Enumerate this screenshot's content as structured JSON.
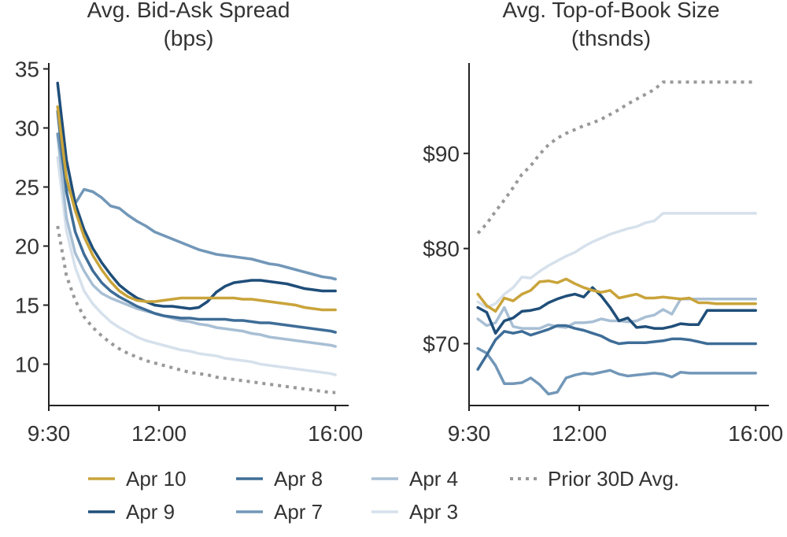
{
  "colors": {
    "Apr 10": "#c9a43a",
    "Apr 9": "#1f4e79",
    "Apr 8": "#3e6d97",
    "Apr 7": "#7297b8",
    "Apr 4": "#a8bfd4",
    "Apr 3": "#d6e1ec",
    "Prior 30D Avg.": "#999999",
    "axis": "#222222",
    "text": "#333333"
  },
  "legend": [
    "Apr 10",
    "Apr 9",
    "Apr 8",
    "Apr 7",
    "Apr 4",
    "Apr 3",
    "Prior 30D Avg."
  ],
  "chart_data": [
    {
      "type": "line",
      "title": "Avg. Bid-Ask Spread\n(bps)",
      "title_line1": "Avg. Bid-Ask Spread",
      "title_line2": "(bps)",
      "x_ticks": [
        "9:30",
        "12:00",
        "16:00"
      ],
      "x_tick_values": [
        9.5,
        12,
        16
      ],
      "xlim": [
        9.5,
        16.3
      ],
      "ylim": [
        6.5,
        35.5
      ],
      "y_ticks": [
        10,
        15,
        20,
        25,
        30,
        35
      ],
      "y_tick_labels": [
        "10",
        "15",
        "20",
        "25",
        "30",
        "35"
      ],
      "series": [
        {
          "name": "Apr 10",
          "x": [
            9.7,
            9.9,
            10.1,
            10.3,
            10.5,
            10.7,
            10.9,
            11.1,
            11.3,
            11.5,
            11.7,
            11.9,
            12.1,
            12.3,
            12.5,
            12.7,
            12.9,
            13.1,
            13.3,
            13.5,
            13.7,
            13.9,
            14.1,
            14.3,
            14.5,
            14.7,
            14.9,
            15.1,
            15.3,
            15.5,
            15.7,
            15.9,
            16.0
          ],
          "y": [
            31.8,
            25.8,
            23,
            20.8,
            19.2,
            18,
            17,
            16.2,
            15.7,
            15.4,
            15.3,
            15.3,
            15.4,
            15.5,
            15.6,
            15.6,
            15.6,
            15.6,
            15.6,
            15.6,
            15.6,
            15.5,
            15.5,
            15.4,
            15.3,
            15.2,
            15.1,
            15.0,
            14.8,
            14.7,
            14.6,
            14.6,
            14.6
          ]
        },
        {
          "name": "Apr 9",
          "x": [
            9.7,
            9.9,
            10.1,
            10.3,
            10.5,
            10.7,
            10.9,
            11.1,
            11.3,
            11.5,
            11.7,
            11.9,
            12.1,
            12.3,
            12.5,
            12.7,
            12.9,
            13.1,
            13.3,
            13.5,
            13.7,
            13.9,
            14.1,
            14.3,
            14.5,
            14.7,
            14.9,
            15.1,
            15.3,
            15.5,
            15.7,
            15.9,
            16.0
          ],
          "y": [
            33.8,
            27.3,
            23.6,
            21.4,
            19.8,
            18.6,
            17.6,
            16.7,
            16.1,
            15.6,
            15.3,
            15.0,
            14.9,
            14.9,
            14.8,
            14.7,
            14.8,
            15.3,
            16.1,
            16.6,
            16.9,
            17.0,
            17.1,
            17.1,
            17.0,
            16.9,
            16.8,
            16.6,
            16.4,
            16.3,
            16.2,
            16.2,
            16.2
          ]
        },
        {
          "name": "Apr 8",
          "x": [
            9.7,
            9.9,
            10.1,
            10.3,
            10.5,
            10.7,
            10.9,
            11.1,
            11.3,
            11.5,
            11.7,
            11.9,
            12.1,
            12.3,
            12.5,
            12.7,
            12.9,
            13.1,
            13.3,
            13.5,
            13.7,
            13.9,
            14.1,
            14.3,
            14.5,
            14.7,
            14.9,
            15.1,
            15.3,
            15.5,
            15.7,
            15.9,
            16.0
          ],
          "y": [
            31.4,
            24.6,
            21.2,
            19.3,
            17.9,
            16.9,
            16.2,
            15.7,
            15.3,
            14.9,
            14.6,
            14.3,
            14.1,
            14.0,
            13.9,
            13.9,
            13.8,
            13.8,
            13.8,
            13.8,
            13.7,
            13.7,
            13.6,
            13.5,
            13.5,
            13.4,
            13.3,
            13.2,
            13.1,
            13.0,
            12.9,
            12.8,
            12.7
          ]
        },
        {
          "name": "Apr 7",
          "x": [
            9.7,
            9.9,
            10.1,
            10.3,
            10.5,
            10.7,
            10.9,
            11.1,
            11.3,
            11.5,
            11.7,
            11.9,
            12.1,
            12.3,
            12.5,
            12.7,
            12.9,
            13.1,
            13.3,
            13.5,
            13.7,
            13.9,
            14.1,
            14.3,
            14.5,
            14.7,
            14.9,
            15.1,
            15.3,
            15.5,
            15.7,
            15.9,
            16.0
          ],
          "y": [
            29.5,
            25.2,
            23.6,
            24.8,
            24.6,
            24.1,
            23.4,
            23.2,
            22.6,
            22.1,
            21.7,
            21.2,
            20.9,
            20.6,
            20.3,
            20.0,
            19.7,
            19.5,
            19.3,
            19.2,
            19.1,
            19.0,
            18.9,
            18.7,
            18.5,
            18.4,
            18.2,
            18.0,
            17.8,
            17.6,
            17.4,
            17.3,
            17.2
          ]
        },
        {
          "name": "Apr 4",
          "x": [
            9.7,
            9.9,
            10.1,
            10.3,
            10.5,
            10.7,
            10.9,
            11.1,
            11.3,
            11.5,
            11.7,
            11.9,
            12.1,
            12.3,
            12.5,
            12.7,
            12.9,
            13.1,
            13.3,
            13.5,
            13.7,
            13.9,
            14.1,
            14.3,
            14.5,
            14.7,
            14.9,
            15.1,
            15.3,
            15.5,
            15.7,
            15.9,
            16.0
          ],
          "y": [
            29.4,
            22.4,
            19.4,
            17.9,
            16.7,
            16.0,
            15.6,
            15.3,
            15.0,
            14.7,
            14.5,
            14.3,
            14.1,
            13.9,
            13.7,
            13.6,
            13.4,
            13.3,
            13.1,
            13.0,
            12.9,
            12.8,
            12.6,
            12.5,
            12.3,
            12.2,
            12.1,
            12.0,
            11.9,
            11.8,
            11.7,
            11.6,
            11.5
          ]
        },
        {
          "name": "Apr 3",
          "x": [
            9.7,
            9.9,
            10.1,
            10.3,
            10.5,
            10.7,
            10.9,
            11.1,
            11.3,
            11.5,
            11.7,
            11.9,
            12.1,
            12.3,
            12.5,
            12.7,
            12.9,
            13.1,
            13.3,
            13.5,
            13.7,
            13.9,
            14.1,
            14.3,
            14.5,
            14.7,
            14.9,
            15.1,
            15.3,
            15.5,
            15.7,
            15.9,
            16.0
          ],
          "y": [
            27.5,
            21.3,
            18.2,
            16.2,
            15.1,
            14.3,
            13.6,
            13.1,
            12.7,
            12.3,
            12.0,
            11.8,
            11.6,
            11.4,
            11.2,
            11.1,
            10.9,
            10.8,
            10.7,
            10.5,
            10.4,
            10.3,
            10.2,
            10.0,
            9.9,
            9.8,
            9.7,
            9.6,
            9.5,
            9.4,
            9.3,
            9.2,
            9.1
          ]
        },
        {
          "name": "Prior 30D Avg.",
          "dashed": true,
          "x": [
            9.7,
            9.9,
            10.1,
            10.3,
            10.5,
            10.7,
            10.9,
            11.1,
            11.3,
            11.5,
            11.7,
            11.9,
            12.1,
            12.3,
            12.5,
            12.7,
            12.9,
            13.1,
            13.3,
            13.5,
            13.7,
            13.9,
            14.1,
            14.3,
            14.5,
            14.7,
            14.9,
            15.1,
            15.3,
            15.5,
            15.7,
            15.9,
            16.0
          ],
          "y": [
            21.7,
            17.5,
            15.4,
            14.0,
            13.1,
            12.4,
            11.8,
            11.3,
            10.9,
            10.6,
            10.3,
            10.1,
            9.9,
            9.7,
            9.5,
            9.3,
            9.2,
            9.1,
            8.9,
            8.8,
            8.7,
            8.6,
            8.5,
            8.4,
            8.3,
            8.2,
            8.1,
            8.0,
            7.9,
            7.8,
            7.7,
            7.6,
            7.6
          ]
        }
      ]
    },
    {
      "type": "line",
      "title": "Avg. Top-of-Book Size\n(thsnds)",
      "title_line1": "Avg. Top-of-Book Size",
      "title_line2": "(thsnds)",
      "x_ticks": [
        "9:30",
        "12:00",
        "16:00"
      ],
      "x_tick_values": [
        9.5,
        12,
        16
      ],
      "xlim": [
        9.5,
        16.3
      ],
      "ylim": [
        63.5,
        99.5
      ],
      "y_ticks": [
        70,
        80,
        90
      ],
      "y_tick_labels": [
        "$70",
        "$80",
        "$90"
      ],
      "series": [
        {
          "name": "Apr 10",
          "x": [
            9.7,
            9.9,
            10.1,
            10.3,
            10.5,
            10.7,
            10.9,
            11.1,
            11.3,
            11.5,
            11.7,
            11.9,
            12.1,
            12.3,
            12.5,
            12.7,
            12.9,
            13.1,
            13.3,
            13.5,
            13.7,
            13.9,
            14.1,
            14.3,
            14.5,
            14.7,
            14.9,
            15.1,
            15.3,
            15.5,
            15.7,
            15.9,
            16.0
          ],
          "y": [
            75.2,
            74.0,
            73.4,
            74.8,
            74.5,
            75.2,
            75.6,
            76.5,
            76.6,
            76.4,
            76.8,
            76.3,
            75.9,
            75.6,
            75.4,
            75.6,
            74.8,
            75.0,
            75.2,
            74.8,
            74.8,
            74.9,
            74.8,
            74.7,
            74.8,
            74.3,
            74.3,
            74.2,
            74.2,
            74.2,
            74.2,
            74.2,
            74.2
          ]
        },
        {
          "name": "Apr 9",
          "x": [
            9.7,
            9.9,
            10.1,
            10.3,
            10.5,
            10.7,
            10.9,
            11.1,
            11.3,
            11.5,
            11.7,
            11.9,
            12.1,
            12.3,
            12.5,
            12.7,
            12.9,
            13.1,
            13.3,
            13.5,
            13.7,
            13.9,
            14.1,
            14.3,
            14.5,
            14.7,
            14.9,
            15.1,
            15.3,
            15.5,
            15.7,
            15.9,
            16.0
          ],
          "y": [
            73.8,
            73.3,
            71.1,
            72.4,
            72.7,
            73.4,
            73.5,
            73.7,
            74.3,
            74.7,
            75.0,
            75.2,
            74.9,
            75.9,
            75.0,
            73.8,
            72.4,
            72.7,
            71.7,
            71.8,
            71.6,
            71.6,
            71.8,
            72.1,
            72.0,
            72.0,
            73.5,
            73.5,
            73.5,
            73.5,
            73.5,
            73.5,
            73.5
          ]
        },
        {
          "name": "Apr 8",
          "x": [
            9.7,
            9.9,
            10.1,
            10.3,
            10.5,
            10.7,
            10.9,
            11.1,
            11.3,
            11.5,
            11.7,
            11.9,
            12.1,
            12.3,
            12.5,
            12.7,
            12.9,
            13.1,
            13.3,
            13.5,
            13.7,
            13.9,
            14.1,
            14.3,
            14.5,
            14.7,
            14.9,
            15.1,
            15.3,
            15.5,
            15.7,
            15.9,
            16.0
          ],
          "y": [
            67.3,
            68.8,
            70.4,
            71.3,
            71.1,
            71.3,
            70.9,
            71.2,
            71.5,
            71.9,
            71.9,
            71.6,
            71.4,
            71.1,
            70.8,
            70.3,
            70.0,
            70.1,
            70.1,
            70.1,
            70.2,
            70.3,
            70.5,
            70.5,
            70.4,
            70.2,
            70.0,
            70.0,
            70.0,
            70.0,
            70.0,
            70.0,
            70.0
          ]
        },
        {
          "name": "Apr 7",
          "x": [
            9.7,
            9.9,
            10.1,
            10.3,
            10.5,
            10.7,
            10.9,
            11.1,
            11.3,
            11.5,
            11.7,
            11.9,
            12.1,
            12.3,
            12.5,
            12.7,
            12.9,
            13.1,
            13.3,
            13.5,
            13.7,
            13.9,
            14.1,
            14.3,
            14.5,
            14.7,
            14.9,
            15.1,
            15.3,
            15.5,
            15.7,
            15.9,
            16.0
          ],
          "y": [
            69.5,
            69.0,
            67.7,
            65.8,
            65.8,
            65.9,
            66.4,
            65.7,
            64.7,
            64.9,
            66.4,
            66.7,
            66.9,
            66.8,
            67.0,
            67.2,
            66.8,
            66.6,
            66.7,
            66.8,
            66.9,
            66.8,
            66.5,
            67.0,
            66.9,
            66.9,
            66.9,
            66.9,
            66.9,
            66.9,
            66.9,
            66.9,
            66.9
          ]
        },
        {
          "name": "Apr 4",
          "x": [
            9.7,
            9.9,
            10.1,
            10.3,
            10.5,
            10.7,
            10.9,
            11.1,
            11.3,
            11.5,
            11.7,
            11.9,
            12.1,
            12.3,
            12.5,
            12.7,
            12.9,
            13.1,
            13.3,
            13.5,
            13.7,
            13.9,
            14.1,
            14.3,
            14.5,
            14.7,
            14.9,
            15.1,
            15.3,
            15.5,
            15.7,
            15.9,
            16.0
          ],
          "y": [
            72.6,
            71.9,
            72.2,
            73.8,
            71.8,
            71.6,
            71.6,
            71.6,
            72.0,
            71.8,
            71.7,
            72.2,
            72.2,
            72.3,
            72.6,
            72.4,
            72.4,
            72.3,
            72.4,
            72.8,
            73.0,
            73.6,
            73.1,
            74.7,
            74.7,
            74.7,
            74.7,
            74.7,
            74.7,
            74.7,
            74.7,
            74.7,
            74.7
          ]
        },
        {
          "name": "Apr 3",
          "x": [
            9.7,
            9.9,
            10.1,
            10.3,
            10.5,
            10.7,
            10.9,
            11.1,
            11.3,
            11.5,
            11.7,
            11.9,
            12.1,
            12.3,
            12.5,
            12.7,
            12.9,
            13.1,
            13.3,
            13.5,
            13.7,
            13.9,
            14.1,
            14.3,
            14.5,
            14.7,
            14.9,
            15.1,
            15.3,
            15.5,
            15.7,
            15.9,
            16.0
          ],
          "y": [
            74.4,
            73.8,
            74.2,
            75.2,
            75.9,
            77.0,
            76.9,
            77.6,
            78.2,
            78.7,
            79.2,
            79.6,
            80.2,
            80.7,
            81.1,
            81.5,
            81.8,
            82.1,
            82.3,
            82.7,
            82.9,
            83.7,
            83.7,
            83.7,
            83.7,
            83.7,
            83.7,
            83.7,
            83.7,
            83.7,
            83.7,
            83.7,
            83.7
          ]
        },
        {
          "name": "Prior 30D Avg.",
          "dashed": true,
          "x": [
            9.7,
            9.9,
            10.1,
            10.3,
            10.5,
            10.7,
            10.9,
            11.1,
            11.3,
            11.5,
            11.7,
            11.9,
            12.1,
            12.3,
            12.5,
            12.7,
            12.9,
            13.1,
            13.3,
            13.5,
            13.7,
            13.9,
            14.1,
            14.3,
            14.5,
            14.7,
            14.9,
            15.1,
            15.3,
            15.5,
            15.7,
            15.9,
            16.0
          ],
          "y": [
            81.6,
            82.6,
            83.9,
            85.1,
            86.4,
            87.8,
            88.7,
            89.9,
            90.9,
            91.6,
            92.1,
            92.5,
            92.9,
            93.2,
            93.6,
            94.1,
            94.6,
            95.2,
            95.7,
            96.2,
            96.7,
            97.5,
            97.5,
            97.5,
            97.5,
            97.5,
            97.5,
            97.5,
            97.5,
            97.5,
            97.5,
            97.5,
            97.5
          ]
        }
      ]
    }
  ]
}
